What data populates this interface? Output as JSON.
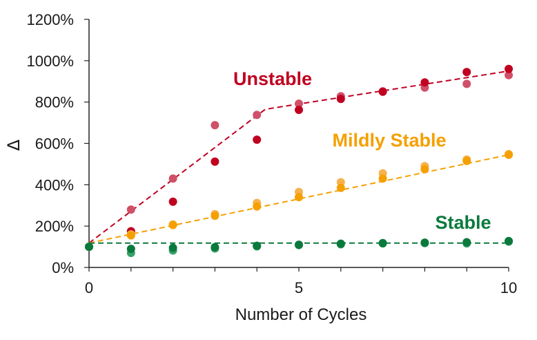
{
  "chart_data": {
    "type": "scatter",
    "xlabel": "Number of Cycles",
    "ylabel": "Δ",
    "xlim": [
      0,
      10
    ],
    "ylim": [
      0,
      1200
    ],
    "x_ticks": [
      "0",
      "5",
      "10"
    ],
    "y_ticks": [
      "0%",
      "200%",
      "400%",
      "600%",
      "800%",
      "1000%",
      "1200%"
    ],
    "grid": false,
    "legend": "none",
    "series": [
      {
        "name": "Unstable",
        "color": "#c00020",
        "color_light": "#d05068",
        "points_a": [
          [
            0,
            100
          ],
          [
            1,
            175
          ],
          [
            2,
            318
          ],
          [
            3,
            512
          ],
          [
            4,
            618
          ],
          [
            5,
            762
          ],
          [
            6,
            815
          ],
          [
            7,
            850
          ],
          [
            8,
            895
          ],
          [
            9,
            945
          ],
          [
            10,
            960
          ]
        ],
        "points_b": [
          [
            0,
            100
          ],
          [
            1,
            280
          ],
          [
            2,
            430
          ],
          [
            3,
            688
          ],
          [
            4,
            738
          ],
          [
            5,
            792
          ],
          [
            6,
            828
          ],
          [
            7,
            852
          ],
          [
            8,
            870
          ],
          [
            9,
            888
          ],
          [
            10,
            930
          ]
        ],
        "trend": [
          [
            0,
            118
          ],
          [
            4.2,
            765
          ],
          [
            10,
            950
          ]
        ]
      },
      {
        "name": "Mildly Stable",
        "color": "#f5a000",
        "color_light": "#f6b24d",
        "points_a": [
          [
            0,
            100
          ],
          [
            1,
            155
          ],
          [
            2,
            205
          ],
          [
            3,
            250
          ],
          [
            4,
            295
          ],
          [
            5,
            340
          ],
          [
            6,
            385
          ],
          [
            7,
            430
          ],
          [
            8,
            475
          ],
          [
            9,
            515
          ],
          [
            10,
            545
          ]
        ],
        "points_b": [
          [
            0,
            100
          ],
          [
            1,
            160
          ],
          [
            2,
            208
          ],
          [
            3,
            258
          ],
          [
            4,
            312
          ],
          [
            5,
            365
          ],
          [
            6,
            412
          ],
          [
            7,
            455
          ],
          [
            8,
            490
          ],
          [
            9,
            522
          ],
          [
            10,
            548
          ]
        ],
        "trend": [
          [
            0,
            118
          ],
          [
            10,
            545
          ]
        ]
      },
      {
        "name": "Stable",
        "color": "#0a7a3c",
        "color_light": "#3aa06a",
        "points_a": [
          [
            0,
            100
          ],
          [
            1,
            90
          ],
          [
            2,
            95
          ],
          [
            3,
            98
          ],
          [
            4,
            105
          ],
          [
            5,
            110
          ],
          [
            6,
            115
          ],
          [
            7,
            118
          ],
          [
            8,
            120
          ],
          [
            9,
            122
          ],
          [
            10,
            128
          ]
        ],
        "points_b": [
          [
            0,
            100
          ],
          [
            1,
            70
          ],
          [
            2,
            82
          ],
          [
            3,
            92
          ],
          [
            4,
            102
          ],
          [
            5,
            108
          ],
          [
            6,
            112
          ],
          [
            7,
            116
          ],
          [
            8,
            118
          ],
          [
            9,
            116
          ],
          [
            10,
            125
          ]
        ],
        "trend": [
          [
            0,
            118
          ],
          [
            10,
            118
          ]
        ]
      }
    ]
  }
}
